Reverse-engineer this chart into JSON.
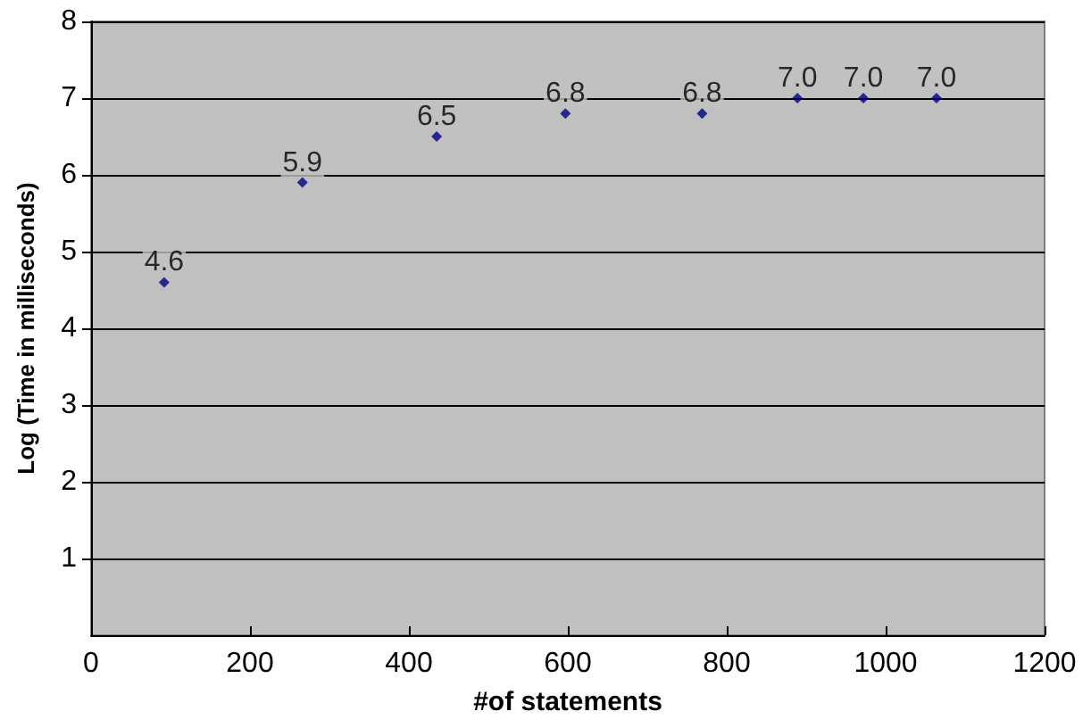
{
  "chart_data": {
    "type": "scatter",
    "xlabel": "#of statements",
    "ylabel": "Log (Time in milliseconds)",
    "x": [
      92,
      266,
      435,
      597,
      769,
      889,
      972,
      1064
    ],
    "values": [
      4.6,
      5.9,
      6.5,
      6.8,
      6.8,
      7.0,
      7.0,
      7.0
    ],
    "value_labels": [
      "4.6",
      "5.9",
      "6.5",
      "6.8",
      "6.8",
      "7.0",
      "7.0",
      "7.0"
    ],
    "color": "#000080",
    "marker": "diamond",
    "grid": "y",
    "xlim": [
      0,
      1200
    ],
    "xticks": [
      0,
      200,
      400,
      600,
      800,
      1000,
      1200
    ],
    "ylim": [
      0,
      8
    ],
    "yticks": [
      1,
      2,
      3,
      4,
      5,
      6,
      7,
      8
    ]
  }
}
